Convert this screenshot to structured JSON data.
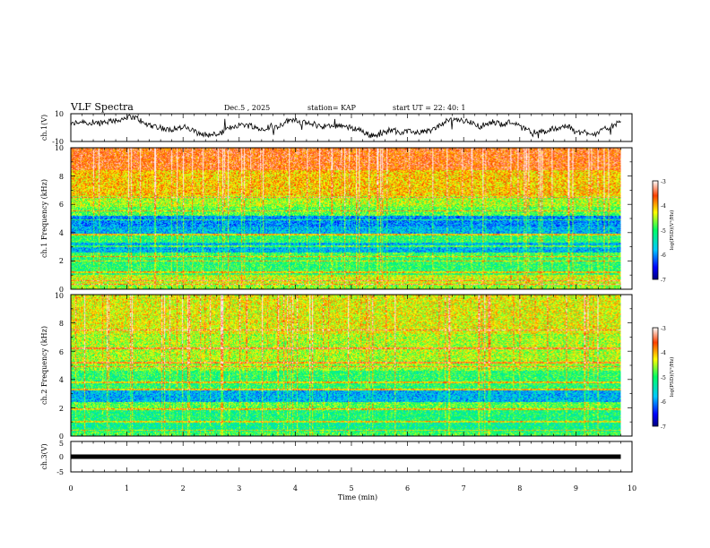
{
  "header": {
    "title": "VLF Spectra",
    "date": "Dec.5 , 2025",
    "station": "station= KAP",
    "start": "start  UT  =   22: 40: 1"
  },
  "chart_data": [
    {
      "id": "ch1-waveform",
      "type": "line",
      "ylabel": "ch.1(V)",
      "ylim": [
        -10,
        10
      ],
      "y_ticks": [
        "10",
        "-10"
      ],
      "xlim": [
        0,
        10
      ],
      "series_color": "#000000",
      "data_end_min": 9.8
    },
    {
      "id": "ch1-spectrogram",
      "type": "heatmap",
      "ylabel": "ch.1\nFrequency (kHz)",
      "ylim": [
        0,
        10
      ],
      "y_ticks": [
        "0",
        "2",
        "4",
        "6",
        "8",
        "10"
      ],
      "xlim": [
        0,
        10
      ],
      "data_end_min": 9.8,
      "colorbar": {
        "label": "log(PSD)(V²/Hz)",
        "range": [
          -7,
          -3
        ],
        "ticks": [
          "-3",
          "-4",
          "-5",
          "-6",
          "-7"
        ]
      },
      "bands": [
        {
          "f": [
            0.0,
            0.3
          ],
          "v": -4.6
        },
        {
          "f": [
            0.3,
            1.0
          ],
          "v": -4.4
        },
        {
          "f": [
            1.0,
            2.2
          ],
          "v": -5.0
        },
        {
          "f": [
            2.2,
            2.6
          ],
          "v": -4.9
        },
        {
          "f": [
            2.6,
            3.3
          ],
          "v": -5.8
        },
        {
          "f": [
            3.3,
            3.9
          ],
          "v": -5.0
        },
        {
          "f": [
            3.9,
            4.4
          ],
          "v": -5.8
        },
        {
          "f": [
            4.4,
            5.2
          ],
          "v": -6.0
        },
        {
          "f": [
            5.2,
            5.8
          ],
          "v": -4.8
        },
        {
          "f": [
            5.8,
            6.6
          ],
          "v": -4.5
        },
        {
          "f": [
            6.6,
            8.4
          ],
          "v": -4.1
        },
        {
          "f": [
            8.4,
            10.0
          ],
          "v": -3.6
        }
      ],
      "lines_khz": [
        0.35,
        0.6,
        1.2,
        2.0,
        2.3,
        3.05,
        3.85,
        4.9,
        5.55,
        6.5
      ]
    },
    {
      "id": "ch2-spectrogram",
      "type": "heatmap",
      "ylabel": "ch.2\nFrequency (kHz)",
      "ylim": [
        0,
        10
      ],
      "y_ticks": [
        "0",
        "2",
        "4",
        "6",
        "8",
        "10"
      ],
      "xlim": [
        0,
        10
      ],
      "data_end_min": 9.8,
      "colorbar": {
        "label": "log(PSD)(V²/Hz)",
        "range": [
          -7,
          -3
        ],
        "ticks": [
          "-3",
          "-4",
          "-5",
          "-6",
          "-7"
        ]
      },
      "bands": [
        {
          "f": [
            0.0,
            0.3
          ],
          "v": -4.9
        },
        {
          "f": [
            0.3,
            1.0
          ],
          "v": -5.2
        },
        {
          "f": [
            1.0,
            1.9
          ],
          "v": -5.1
        },
        {
          "f": [
            1.9,
            2.4
          ],
          "v": -4.8
        },
        {
          "f": [
            2.4,
            3.2
          ],
          "v": -5.8
        },
        {
          "f": [
            3.2,
            4.6
          ],
          "v": -5.0
        },
        {
          "f": [
            4.6,
            5.3
          ],
          "v": -4.6
        },
        {
          "f": [
            5.3,
            7.2
          ],
          "v": -4.5
        },
        {
          "f": [
            7.2,
            10.0
          ],
          "v": -4.3
        }
      ],
      "lines_khz": [
        0.4,
        1.0,
        1.9,
        3.3,
        3.8,
        4.9,
        5.2,
        6.2,
        7.5
      ]
    },
    {
      "id": "ch3-waveform",
      "type": "line",
      "ylabel": "ch.3(V)",
      "ylim": [
        -5,
        5
      ],
      "y_ticks": [
        "5",
        "0",
        "-5"
      ],
      "xlim": [
        0,
        10
      ],
      "data_end_min": 9.8,
      "level_v": 0.0,
      "series_color": "#000000"
    }
  ],
  "xaxis": {
    "label": "Time  (min)",
    "ticks": [
      "0",
      "1",
      "2",
      "3",
      "4",
      "5",
      "6",
      "7",
      "8",
      "9",
      "10"
    ]
  }
}
